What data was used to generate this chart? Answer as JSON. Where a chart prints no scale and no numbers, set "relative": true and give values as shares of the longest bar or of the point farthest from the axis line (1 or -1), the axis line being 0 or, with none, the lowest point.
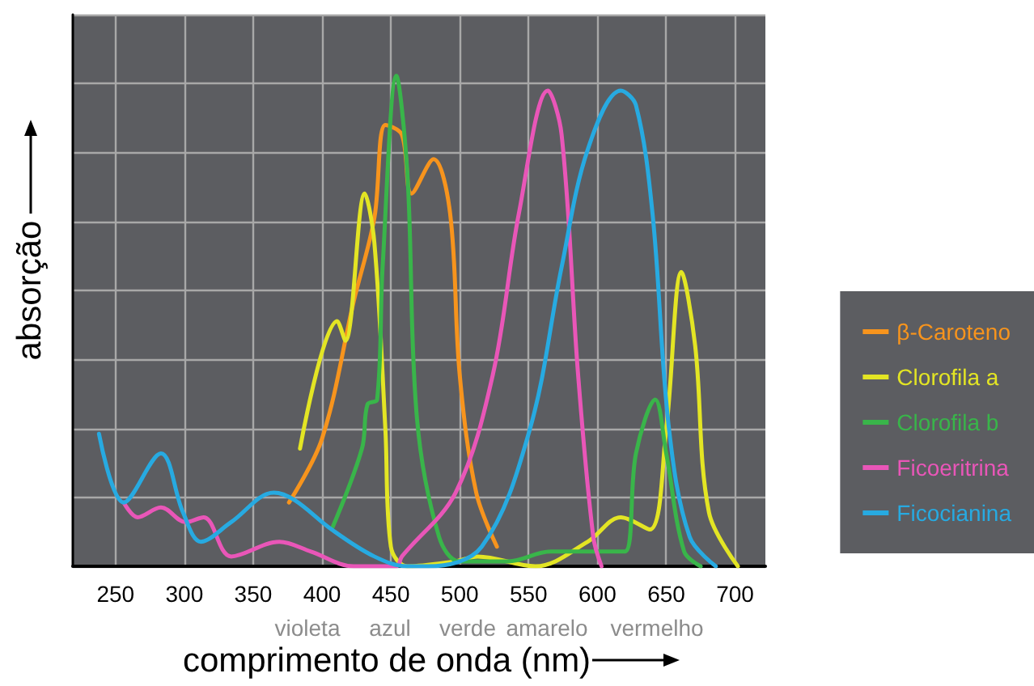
{
  "chart_data": {
    "type": "line",
    "relative": true,
    "xlabel": "comprimento de onda (nm)",
    "ylabel": "absorção",
    "xlim": [
      219,
      722
    ],
    "xticks": [
      250,
      300,
      350,
      400,
      450,
      500,
      550,
      600,
      650,
      700
    ],
    "grid": true,
    "legend": "right",
    "marker": "none",
    "line_style": "solid",
    "annotations": [
      "violeta",
      "azul",
      "verde",
      "amarelo",
      "vermelho"
    ],
    "series": [
      {
        "name": "β-Caroteno",
        "color": "#f7941d",
        "x": [
          376,
          400,
          423,
          438,
          446,
          458,
          465,
          481,
          493,
          500,
          512,
          527
        ],
        "values": [
          0.13,
          0.26,
          0.54,
          0.71,
          0.9,
          0.88,
          0.76,
          0.83,
          0.72,
          0.39,
          0.15,
          0.04
        ]
      },
      {
        "name": "Clorofila a",
        "color": "#e3e524",
        "x": [
          384,
          411,
          417,
          431,
          438,
          446,
          450,
          462,
          497,
          513,
          555,
          593,
          617,
          638,
          650,
          661,
          671,
          681,
          702
        ],
        "values": [
          0.24,
          0.5,
          0.46,
          0.76,
          0.66,
          0.28,
          0.04,
          0,
          0.01,
          0.02,
          0,
          0.05,
          0.1,
          0.075,
          0.28,
          0.6,
          0.45,
          0.11,
          0
        ]
      },
      {
        "name": "Clorofila b",
        "color": "#39b54a",
        "x": [
          407,
          429,
          433,
          440,
          444,
          454,
          462,
          469,
          485,
          500,
          535,
          566,
          605,
          620,
          628,
          642,
          650,
          663,
          675
        ],
        "values": [
          0.075,
          0.24,
          0.33,
          0.34,
          0.61,
          1.0,
          0.8,
          0.3,
          0.06,
          0.01,
          0.01,
          0.03,
          0.03,
          0.03,
          0.23,
          0.34,
          0.23,
          0.03,
          0
        ]
      },
      {
        "name": "Ficoeritrina",
        "color": "#e956b8",
        "x": [
          256,
          266,
          283,
          301,
          314,
          334,
          369,
          392,
          423,
          454,
          458,
          497,
          524,
          543,
          564,
          574,
          586,
          597,
          603
        ],
        "values": [
          0.13,
          0.1,
          0.12,
          0.09,
          0.1,
          0.02,
          0.05,
          0.03,
          0,
          0,
          0.02,
          0.15,
          0.39,
          0.72,
          0.97,
          0.88,
          0.39,
          0.06,
          0
        ]
      },
      {
        "name": "Ficocianina",
        "color": "#27aae1",
        "x": [
          238,
          256,
          283,
          299,
          312,
          334,
          365,
          380,
          407,
          438,
          462,
          477,
          516,
          551,
          574,
          593,
          617,
          628,
          640,
          652,
          667,
          686
        ],
        "values": [
          0.27,
          0.13,
          0.23,
          0.11,
          0.05,
          0.09,
          0.15,
          0.135,
          0.075,
          0.02,
          0,
          0,
          0.04,
          0.28,
          0.61,
          0.85,
          0.97,
          0.94,
          0.72,
          0.28,
          0.06,
          0
        ]
      }
    ]
  }
}
